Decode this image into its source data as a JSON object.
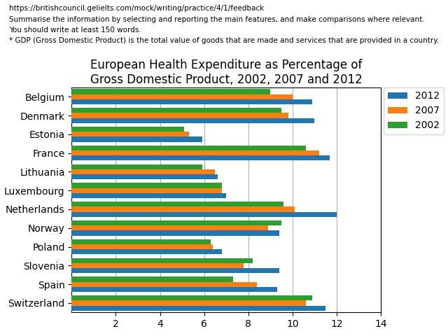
{
  "chart_data": {
    "type": "bar",
    "orientation": "horizontal",
    "title": "European Health Expenditure as Percentage of\nGross Domestic Product, 2002, 2007 and 2012",
    "annotations": [
      "https://britishcouncil.gelielts.com/mock/writing/practice/4/1/feedback",
      "Summarise the information by selecting and reporting the main features, and make comparisons where relevant.",
      "You should write at least 150 words.",
      "* GDP (Gross Domestic Product) is the total value of goods that are made and services that are provided in a country."
    ],
    "categories": [
      "Belgium",
      "Denmark",
      "Estonia",
      "France",
      "Lithuania",
      "Luxembourg",
      "Netherlands",
      "Norway",
      "Poland",
      "Slovenia",
      "Spain",
      "Switzerland"
    ],
    "series": [
      {
        "name": "2012",
        "values": [
          10.9,
          11.0,
          5.9,
          11.7,
          6.6,
          7.0,
          12.0,
          9.4,
          6.8,
          9.4,
          9.3,
          11.5
        ]
      },
      {
        "name": "2007",
        "values": [
          10.0,
          9.8,
          5.3,
          11.2,
          6.5,
          6.8,
          10.1,
          8.9,
          6.4,
          7.8,
          8.4,
          10.6
        ]
      },
      {
        "name": "2002",
        "values": [
          9.0,
          9.5,
          5.1,
          10.6,
          5.9,
          6.8,
          9.6,
          9.5,
          6.3,
          8.2,
          7.3,
          10.9
        ]
      }
    ],
    "xlim": [
      0,
      14
    ],
    "xticks": [
      2,
      4,
      6,
      8,
      10,
      12,
      14
    ],
    "grid": true,
    "legend": "upper right"
  }
}
